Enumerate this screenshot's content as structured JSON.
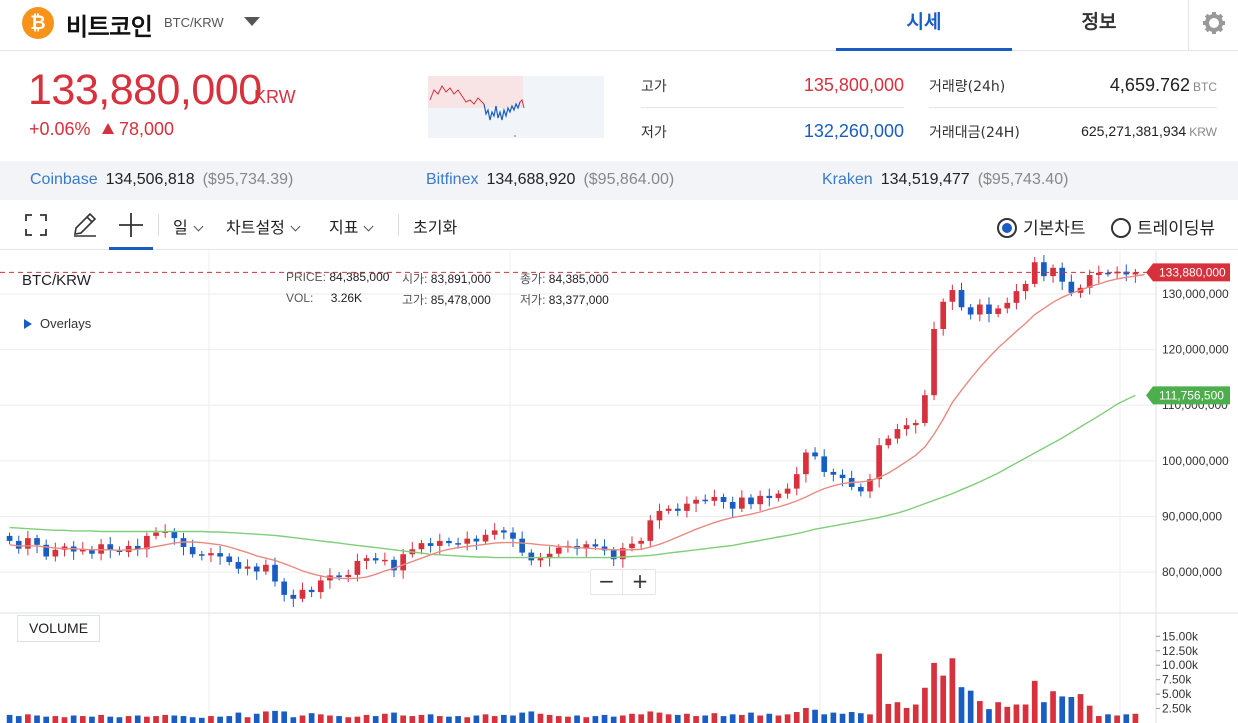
{
  "header": {
    "coin_symbol": "₿",
    "coin_name": "비트코인",
    "pair": "BTC/KRW",
    "tabs": [
      {
        "label": "시세",
        "active": true
      },
      {
        "label": "정보",
        "active": false
      }
    ],
    "settings_icon": "gear-icon"
  },
  "price": {
    "current": "133,880,000",
    "unit": "KRW",
    "change_pct": "+0.06%",
    "change_diff": "78,000",
    "up_color": "#d6313c",
    "down_color": "#1a5dc2"
  },
  "stats": {
    "high_label": "고가",
    "high_value": "135,800,000",
    "low_label": "저가",
    "low_value": "132,260,000",
    "volume_label": "거래량(24h)",
    "volume_value": "4,659.762",
    "volume_unit": "BTC",
    "amount_label": "거래대금(24H)",
    "amount_value": "625,271,381,934",
    "amount_unit": "KRW"
  },
  "exchanges": [
    {
      "name": "Coinbase",
      "price": "134,506,818",
      "usd": "($95,734.39)"
    },
    {
      "name": "Bitfinex",
      "price": "134,688,920",
      "usd": "($95,864.00)"
    },
    {
      "name": "Kraken",
      "price": "134,519,477",
      "usd": "($95,743.40)"
    }
  ],
  "toolbar": {
    "fullscreen_icon": "fullscreen-icon",
    "draw_icon": "pencil-icon",
    "crosshair_icon": "crosshair-icon",
    "period": "일",
    "chart_settings": "차트설정",
    "indicators": "지표",
    "reset": "초기화",
    "radio_basic": "기본차트",
    "radio_tradingview": "트레이딩뷰",
    "selected": "기본차트"
  },
  "chart": {
    "pair_label": "BTC/KRW",
    "overlays_label": "Overlays",
    "ohlc": {
      "price_key": "PRICE:",
      "price": "84,385,000",
      "open_key": "시가:",
      "open": "83,891,000",
      "close_key": "종가:",
      "close": "84,385,000",
      "vol_key": "VOL:",
      "vol": "3.26K",
      "high_key": "고가:",
      "high": "85,478,000",
      "low_key": "저가:",
      "low": "83,377,000"
    },
    "current_price_tag": "133,880,000",
    "ma_long_tag": "111,756,500",
    "volume_label": "VOLUME",
    "zoom_out": "−",
    "zoom_in": "+",
    "ma_short_color": "#e98a82",
    "ma_long_color": "#7fcf7a"
  },
  "chart_data": {
    "type": "candlestick",
    "ylim": [
      73000000,
      137000000
    ],
    "yticks": [
      130000000,
      120000000,
      110000000,
      100000000,
      90000000,
      80000000
    ],
    "ytick_labels": [
      "130,000,000",
      "120,000,000",
      "110,000,000",
      "100,000,000",
      "90,000,000",
      "80,000,000"
    ],
    "vol_ylim": [
      0,
      18000
    ],
    "vol_ticks": [
      2500,
      5000,
      7500,
      10000,
      12500,
      15000
    ],
    "vol_tick_labels": [
      "2.50k",
      "5.00k",
      "7.50k",
      "10.00k",
      "12.50k",
      "15.00k"
    ],
    "candles": [
      [
        86.5,
        85.6
      ],
      [
        85.6,
        84.2
      ],
      [
        84.2,
        86.1
      ],
      [
        86.1,
        84.9
      ],
      [
        84.9,
        82.8
      ],
      [
        82.8,
        84.0
      ],
      [
        84.0,
        84.6
      ],
      [
        84.6,
        83.7
      ],
      [
        83.7,
        84.1
      ],
      [
        84.1,
        83.3
      ],
      [
        83.3,
        85.0
      ],
      [
        85.0,
        84.0
      ],
      [
        84.0,
        83.6
      ],
      [
        83.6,
        84.7
      ],
      [
        84.7,
        84.1
      ],
      [
        84.1,
        86.5
      ],
      [
        86.5,
        87.1
      ],
      [
        87.1,
        87.3
      ],
      [
        87.3,
        86.1
      ],
      [
        86.1,
        84.5
      ],
      [
        84.5,
        83.2
      ],
      [
        83.2,
        83.0
      ],
      [
        83.0,
        83.4
      ],
      [
        83.4,
        82.8
      ],
      [
        82.8,
        81.8
      ],
      [
        81.8,
        80.6
      ],
      [
        80.6,
        81.0
      ],
      [
        81.0,
        80.1
      ],
      [
        80.1,
        81.3
      ],
      [
        81.3,
        78.3
      ],
      [
        78.3,
        75.9
      ],
      [
        75.9,
        75.2
      ],
      [
        75.2,
        76.8
      ],
      [
        76.8,
        76.4
      ],
      [
        76.4,
        78.5
      ],
      [
        78.5,
        79.4
      ],
      [
        79.4,
        79.1
      ],
      [
        79.1,
        79.5
      ],
      [
        79.5,
        82.0
      ],
      [
        82.0,
        82.5
      ],
      [
        82.5,
        82.1
      ],
      [
        82.1,
        82.2
      ],
      [
        82.2,
        80.3
      ],
      [
        80.3,
        83.2
      ],
      [
        83.2,
        84.1
      ],
      [
        84.1,
        85.2
      ],
      [
        85.2,
        84.7
      ],
      [
        84.7,
        85.6
      ],
      [
        85.6,
        85.2
      ],
      [
        85.2,
        85.1
      ],
      [
        85.1,
        86.0
      ],
      [
        86.0,
        85.5
      ],
      [
        85.5,
        86.7
      ],
      [
        86.7,
        87.5
      ],
      [
        87.5,
        87.1
      ],
      [
        87.1,
        86.0
      ],
      [
        86.0,
        83.5
      ],
      [
        83.5,
        82.1
      ],
      [
        82.1,
        82.5
      ],
      [
        82.5,
        83.3
      ],
      [
        83.3,
        84.4
      ],
      [
        84.4,
        84.7
      ],
      [
        84.7,
        84.2
      ],
      [
        84.2,
        85.0
      ],
      [
        85.0,
        84.6
      ],
      [
        84.6,
        83.9
      ],
      [
        83.9,
        82.3
      ],
      [
        82.3,
        84.3
      ],
      [
        84.3,
        85.1
      ],
      [
        85.1,
        85.6
      ],
      [
        85.6,
        89.3
      ],
      [
        89.3,
        91.0
      ],
      [
        91.0,
        91.4
      ],
      [
        91.4,
        91.0
      ],
      [
        91.0,
        92.3
      ],
      [
        92.3,
        93.0
      ],
      [
        93.0,
        92.8
      ],
      [
        92.8,
        93.5
      ],
      [
        93.5,
        92.6
      ],
      [
        92.6,
        91.4
      ],
      [
        91.4,
        93.4
      ],
      [
        93.4,
        92.2
      ],
      [
        92.2,
        93.7
      ],
      [
        93.7,
        93.3
      ],
      [
        93.3,
        94.1
      ],
      [
        94.1,
        95.0
      ],
      [
        95.0,
        97.6
      ],
      [
        97.6,
        101.5
      ],
      [
        101.5,
        100.8
      ],
      [
        100.8,
        98.0
      ],
      [
        98.0,
        97.5
      ],
      [
        97.5,
        96.9
      ],
      [
        96.9,
        95.3
      ],
      [
        95.3,
        94.5
      ],
      [
        94.5,
        96.7
      ],
      [
        96.7,
        102.8
      ],
      [
        102.8,
        104.0
      ],
      [
        104.0,
        105.7
      ],
      [
        105.7,
        106.4
      ],
      [
        106.4,
        106.8
      ],
      [
        106.8,
        111.8
      ],
      [
        111.8,
        123.7
      ],
      [
        123.7,
        128.6
      ],
      [
        128.6,
        130.7
      ],
      [
        130.7,
        127.6
      ],
      [
        127.6,
        126.3
      ],
      [
        126.3,
        128.1
      ],
      [
        128.1,
        126.4
      ],
      [
        126.4,
        127.4
      ],
      [
        127.4,
        128.4
      ],
      [
        128.4,
        130.5
      ],
      [
        130.5,
        131.8
      ],
      [
        131.8,
        135.7
      ],
      [
        135.7,
        133.2
      ],
      [
        133.2,
        134.7
      ],
      [
        134.7,
        132.2
      ],
      [
        132.2,
        130.2
      ],
      [
        130.2,
        131.1
      ],
      [
        131.1,
        133.4
      ],
      [
        133.4,
        133.8
      ],
      [
        133.8,
        133.7
      ],
      [
        133.7,
        134.0
      ],
      [
        134.0,
        133.5
      ],
      [
        133.5,
        133.88
      ]
    ],
    "volumes": [
      1.4,
      1.2,
      1.5,
      1.3,
      1.1,
      1.2,
      1.0,
      1.3,
      1.2,
      1.1,
      1.4,
      1.1,
      1.0,
      1.2,
      1.3,
      1.1,
      1.2,
      1.4,
      1.3,
      1.2,
      1.0,
      0.9,
      1.2,
      1.1,
      1.2,
      1.8,
      1.0,
      1.6,
      2.0,
      2.1,
      2.0,
      1.0,
      1.3,
      1.7,
      1.5,
      1.3,
      1.2,
      1.0,
      1.1,
      1.4,
      1.2,
      1.6,
      1.8,
      1.3,
      1.2,
      1.4,
      1.5,
      1.2,
      1.1,
      1.2,
      1.0,
      1.3,
      1.5,
      1.2,
      1.4,
      1.3,
      1.8,
      2.0,
      1.6,
      1.4,
      1.2,
      1.1,
      1.3,
      1.0,
      1.2,
      1.4,
      1.1,
      1.3,
      1.6,
      1.5,
      2.0,
      1.8,
      1.5,
      1.4,
      1.6,
      1.2,
      1.3,
      1.7,
      1.2,
      1.5,
      1.4,
      1.8,
      1.3,
      1.6,
      1.3,
      1.5,
      1.9,
      2.6,
      2.3,
      1.5,
      1.8,
      1.6,
      1.9,
      1.7,
      1.5,
      12.0,
      3.3,
      3.6,
      2.6,
      3.2,
      6.1,
      10.4,
      8.2,
      11.2,
      6.2,
      5.6,
      3.8,
      2.4,
      3.6,
      2.8,
      3.2,
      3.2,
      7.3,
      3.6,
      5.5,
      4.6,
      4.5,
      5.0,
      3.0,
      1.2,
      1.5,
      1.3,
      1.5,
      1.6
    ],
    "ma_short": [
      84.9,
      84.7,
      84.7,
      84.7,
      84.5,
      84.3,
      84.2,
      84.2,
      84.1,
      84.0,
      84.0,
      84.0,
      83.9,
      84.0,
      84.1,
      84.3,
      84.6,
      84.9,
      85.2,
      85.4,
      85.4,
      85.3,
      85.1,
      84.9,
      84.5,
      84.0,
      83.5,
      82.9,
      82.5,
      82.1,
      81.5,
      80.9,
      80.2,
      79.7,
      79.3,
      79.0,
      78.9,
      78.8,
      78.9,
      79.1,
      79.6,
      80.2,
      80.7,
      81.3,
      81.9,
      82.5,
      83.1,
      83.7,
      84.1,
      84.4,
      84.6,
      84.8,
      85.0,
      85.2,
      85.3,
      85.3,
      85.2,
      85.1,
      84.9,
      84.8,
      84.6,
      84.5,
      84.4,
      84.3,
      84.2,
      84.1,
      84.0,
      84.0,
      84.0,
      84.1,
      84.5,
      85.0,
      85.6,
      86.3,
      87.0,
      87.7,
      88.3,
      88.9,
      89.4,
      89.8,
      90.1,
      90.4,
      90.8,
      91.3,
      91.7,
      92.2,
      92.8,
      93.5,
      94.3,
      95.0,
      95.5,
      95.9,
      96.1,
      96.2,
      96.4,
      97.0,
      97.8,
      98.8,
      99.9,
      101.0,
      102.5,
      104.8,
      107.5,
      110.5,
      112.7,
      114.8,
      116.8,
      118.6,
      120.3,
      121.8,
      123.3,
      124.7,
      126.3,
      127.4,
      128.5,
      129.4,
      130.1,
      130.7,
      131.3,
      131.8,
      132.3,
      132.7,
      133.0,
      133.2,
      133.5
    ],
    "ma_long": [
      88.0,
      87.9,
      87.8,
      87.7,
      87.6,
      87.5,
      87.5,
      87.4,
      87.4,
      87.4,
      87.3,
      87.3,
      87.3,
      87.3,
      87.3,
      87.3,
      87.3,
      87.3,
      87.3,
      87.3,
      87.3,
      87.3,
      87.2,
      87.2,
      87.1,
      87.0,
      86.9,
      86.8,
      86.7,
      86.6,
      86.4,
      86.2,
      86.0,
      85.8,
      85.6,
      85.4,
      85.2,
      85.0,
      84.8,
      84.6,
      84.4,
      84.2,
      84.0,
      83.8,
      83.6,
      83.4,
      83.2,
      83.1,
      83.0,
      82.9,
      82.8,
      82.7,
      82.7,
      82.6,
      82.6,
      82.6,
      82.6,
      82.6,
      82.6,
      82.6,
      82.6,
      82.6,
      82.6,
      82.6,
      82.6,
      82.6,
      82.6,
      82.7,
      82.8,
      82.9,
      83.0,
      83.2,
      83.4,
      83.6,
      83.8,
      84.0,
      84.2,
      84.4,
      84.6,
      84.8,
      85.1,
      85.4,
      85.7,
      86.0,
      86.3,
      86.6,
      86.9,
      87.3,
      87.7,
      88.0,
      88.3,
      88.6,
      88.9,
      89.2,
      89.5,
      89.8,
      90.2,
      90.6,
      91.1,
      91.7,
      92.3,
      92.9,
      93.5,
      94.1,
      94.8,
      95.5,
      96.2,
      97.0,
      97.8,
      98.7,
      99.6,
      100.5,
      101.4,
      102.3,
      103.2,
      104.1,
      105.1,
      106.1,
      107.1,
      108.1,
      109.1,
      110.2,
      111.0,
      111.76
    ]
  }
}
